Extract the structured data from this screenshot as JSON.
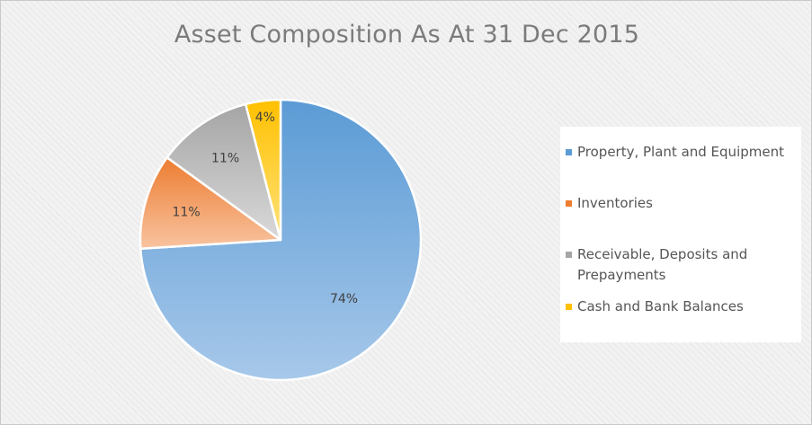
{
  "chart_data": {
    "type": "pie",
    "title": "Asset Composition As At 31 Dec 2015",
    "slices": [
      {
        "name": "Property, Plant and Equipment",
        "value": 74,
        "label": "74%",
        "color_light": "#a7c8ea",
        "color_dark": "#5b9bd5"
      },
      {
        "name": "Inventories",
        "value": 11,
        "label": "11%",
        "color_light": "#f8c3a0",
        "color_dark": "#ed7d31"
      },
      {
        "name": "Receivable, Deposits and Prepayments",
        "value": 11,
        "label": "11%",
        "color_light": "#d9d9d9",
        "color_dark": "#a5a5a5"
      },
      {
        "name": "Cash and Bank Balances",
        "value": 4,
        "label": "4%",
        "color_light": "#ffe27a",
        "color_dark": "#ffc000"
      }
    ],
    "legend_position": "right",
    "start_direction": "top, clockwise"
  },
  "legend": {
    "items": [
      "Property, Plant and Equipment",
      "Inventories",
      "Receivable, Deposits and Prepayments",
      "Cash and Bank Balances"
    ]
  }
}
